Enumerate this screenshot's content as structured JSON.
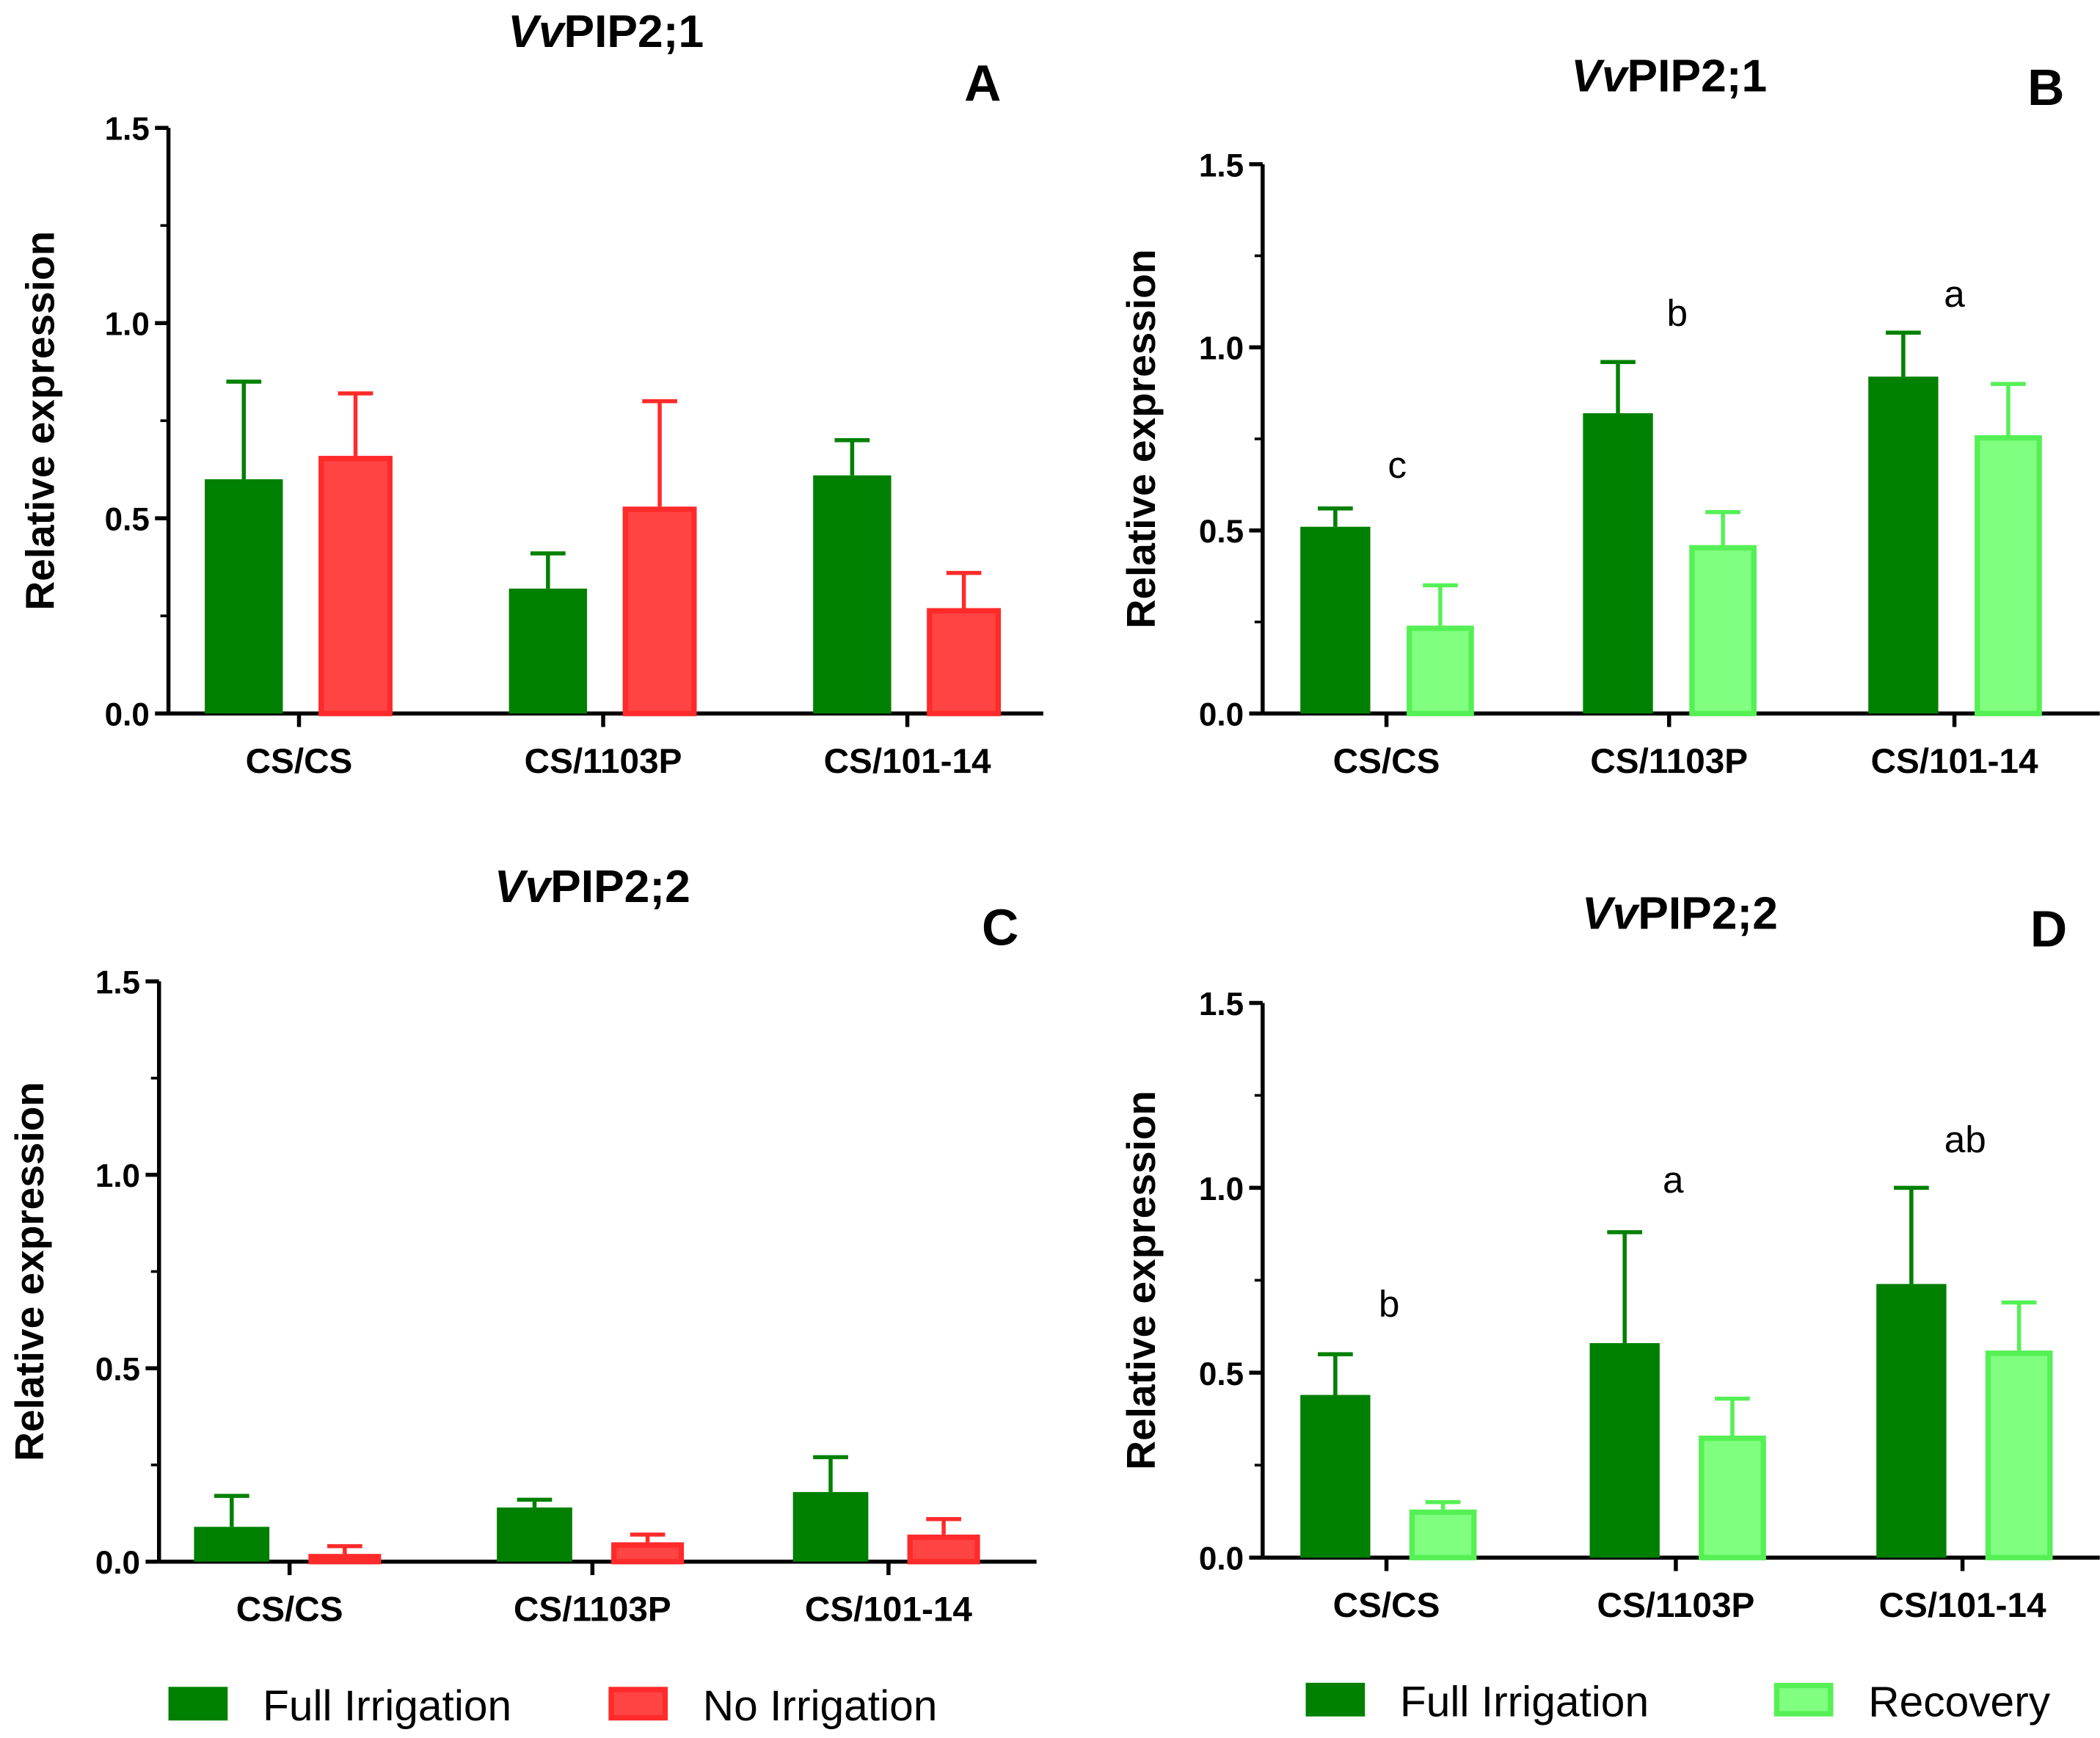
{
  "chart_data": [
    {
      "id": "A",
      "type": "bar",
      "panel_label": "A",
      "title_italic": "Vv",
      "title_rest": "PIP2;1",
      "ylabel": "Relative expression",
      "ylim": [
        0,
        1.5
      ],
      "yticks": [
        "0.0",
        "0.5",
        "1.0",
        "1.5"
      ],
      "categories": [
        "CS/CS",
        "CS/1103P",
        "CS/101-14"
      ],
      "series": [
        {
          "name": "Full Irrigation",
          "fill": "#008000",
          "stroke": "#008000",
          "values": [
            0.6,
            0.32,
            0.61
          ],
          "err_upper": [
            0.85,
            0.41,
            0.7
          ]
        },
        {
          "name": "No Irrigation",
          "fill": "#ff4444",
          "stroke": "#ff2a2a",
          "values": [
            0.66,
            0.53,
            0.27
          ],
          "err_upper": [
            0.82,
            0.8,
            0.36
          ]
        }
      ],
      "significance": []
    },
    {
      "id": "B",
      "type": "bar",
      "panel_label": "B",
      "title_italic": "Vv",
      "title_rest": "PIP2;1",
      "ylabel": "Relative expression",
      "ylim": [
        0,
        1.5
      ],
      "yticks": [
        "0.0",
        "0.5",
        "1.0",
        "1.5"
      ],
      "categories": [
        "CS/CS",
        "CS/1103P",
        "CS/101-14"
      ],
      "series": [
        {
          "name": "Full Irrigation",
          "fill": "#008000",
          "stroke": "#008000",
          "values": [
            0.51,
            0.82,
            0.92
          ],
          "err_upper": [
            0.56,
            0.96,
            1.04
          ]
        },
        {
          "name": "Recovery",
          "fill": "#80ff80",
          "stroke": "#55f055",
          "values": [
            0.24,
            0.46,
            0.76
          ],
          "err_upper": [
            0.35,
            0.55,
            0.9
          ]
        }
      ],
      "significance": [
        "c",
        "b",
        "a"
      ]
    },
    {
      "id": "C",
      "type": "bar",
      "panel_label": "C",
      "title_italic": "Vv",
      "title_rest": "PIP2;2",
      "ylabel": "Relative expression",
      "ylim": [
        0,
        1.5
      ],
      "yticks": [
        "0.0",
        "0.5",
        "1.0",
        "1.5"
      ],
      "categories": [
        "CS/CS",
        "CS/1103P",
        "CS/101-14"
      ],
      "series": [
        {
          "name": "Full Irrigation",
          "fill": "#008000",
          "stroke": "#008000",
          "values": [
            0.09,
            0.14,
            0.18
          ],
          "err_upper": [
            0.17,
            0.16,
            0.27
          ]
        },
        {
          "name": "No Irrigation",
          "fill": "#ff4444",
          "stroke": "#ff2a2a",
          "values": [
            0.02,
            0.05,
            0.07
          ],
          "err_upper": [
            0.04,
            0.07,
            0.11
          ]
        }
      ],
      "significance": []
    },
    {
      "id": "D",
      "type": "bar",
      "panel_label": "D",
      "title_italic": "Vv",
      "title_rest": "PIP2;2",
      "ylabel": "Relative expression",
      "ylim": [
        0,
        1.5
      ],
      "yticks": [
        "0.0",
        "0.5",
        "1.0",
        "1.5"
      ],
      "categories": [
        "CS/CS",
        "CS/1103P",
        "CS/101-14"
      ],
      "series": [
        {
          "name": "Full Irrigation",
          "fill": "#008000",
          "stroke": "#008000",
          "values": [
            0.44,
            0.58,
            0.74
          ],
          "err_upper": [
            0.55,
            0.88,
            1.0
          ]
        },
        {
          "name": "Recovery",
          "fill": "#80ff80",
          "stroke": "#55f055",
          "values": [
            0.13,
            0.33,
            0.56
          ],
          "err_upper": [
            0.15,
            0.43,
            0.69
          ]
        }
      ],
      "significance": [
        "b",
        "a",
        "ab"
      ]
    }
  ],
  "legends": [
    {
      "items": [
        {
          "label": "Full Irrigation",
          "fill": "#008000",
          "stroke": "#008000"
        },
        {
          "label": "No Irrigation",
          "fill": "#ff4444",
          "stroke": "#ff2a2a"
        }
      ]
    },
    {
      "items": [
        {
          "label": "Full Irrigation",
          "fill": "#008000",
          "stroke": "#008000"
        },
        {
          "label": "Recovery",
          "fill": "#80ff80",
          "stroke": "#55f055"
        }
      ]
    }
  ]
}
